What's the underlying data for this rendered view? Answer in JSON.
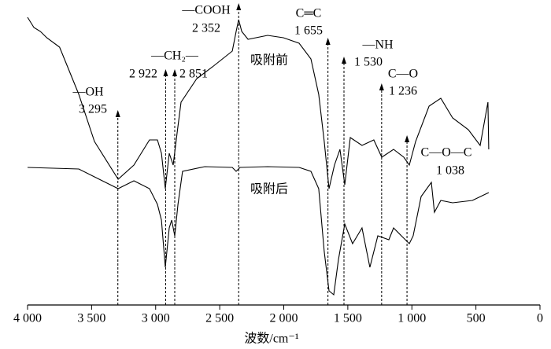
{
  "chart_data": {
    "type": "line",
    "xlabel": "波数/cm⁻¹",
    "xlim": [
      4000,
      0
    ],
    "ylim": [
      0,
      400
    ],
    "xticks": [
      {
        "value": 4000,
        "label": "4 000"
      },
      {
        "value": 3500,
        "label": "3 500"
      },
      {
        "value": 3000,
        "label": "3 000"
      },
      {
        "value": 2500,
        "label": "2 500"
      },
      {
        "value": 2000,
        "label": "2 000"
      },
      {
        "value": 1500,
        "label": "1 500"
      },
      {
        "value": 1000,
        "label": "1 000"
      },
      500,
      0
    ],
    "series": [
      {
        "name": "吸附前",
        "color": "#000000",
        "x": [
          4000,
          3950,
          3900,
          3850,
          3750,
          3600,
          3478,
          3293,
          3170,
          3048,
          2986,
          2955,
          2925,
          2894,
          2863,
          2833,
          2802,
          2679,
          2556,
          2402,
          2372,
          2352,
          2328,
          2279,
          2126,
          2003,
          1880,
          1788,
          1727,
          1684,
          1647,
          1604,
          1561,
          1524,
          1481,
          1389,
          1297,
          1235,
          1143,
          1063,
          1020,
          971,
          866,
          774,
          682,
          559,
          467,
          406,
          400
        ],
        "values": [
          366,
          353,
          348,
          340,
          328,
          268,
          208,
          160,
          178,
          210,
          210,
          193,
          148,
          193,
          178,
          218,
          258,
          288,
          303,
          323,
          348,
          363,
          348,
          338,
          343,
          340,
          333,
          313,
          268,
          208,
          148,
          178,
          198,
          153,
          213,
          203,
          210,
          188,
          198,
          188,
          178,
          208,
          253,
          263,
          238,
          223,
          203,
          258,
          198
        ]
      },
      {
        "name": "吸附后",
        "color": "#000000",
        "x": [
          4000,
          3600,
          3416,
          3293,
          3170,
          3048,
          2986,
          2955,
          2925,
          2894,
          2875,
          2851,
          2826,
          2790,
          2617,
          2402,
          2372,
          2341,
          2126,
          1880,
          1788,
          1727,
          1684,
          1647,
          1610,
          1573,
          1524,
          1463,
          1389,
          1328,
          1266,
          1180,
          1143,
          1082,
          1020,
          990,
          928,
          848,
          824,
          774,
          682,
          528,
          400
        ],
        "values": [
          175,
          173,
          158,
          148,
          158,
          148,
          128,
          108,
          48,
          98,
          108,
          88,
          128,
          170,
          176,
          175,
          170,
          175,
          176,
          175,
          170,
          148,
          68,
          18,
          13,
          58,
          103,
          78,
          98,
          48,
          88,
          83,
          98,
          88,
          78,
          88,
          138,
          156,
          118,
          133,
          130,
          133,
          143
        ]
      }
    ],
    "peaks": [
      {
        "label": "—OH",
        "wavenumbers": [
          {
            "value": 3295,
            "label": "3 295"
          }
        ]
      },
      {
        "label": "—CH₂—",
        "wavenumbers": [
          {
            "value": 2922,
            "label": "2 922"
          },
          {
            "value": 2851,
            "label": "2 851"
          }
        ]
      },
      {
        "label": "—COOH",
        "wavenumbers": [
          {
            "value": 2352,
            "label": "2 352"
          }
        ]
      },
      {
        "label": "C═C",
        "wavenumbers": [
          {
            "value": 1655,
            "label": "1 655"
          }
        ]
      },
      {
        "label": "—NH",
        "wavenumbers": [
          {
            "value": 1530,
            "label": "1 530"
          }
        ]
      },
      {
        "label": "C—O",
        "wavenumbers": [
          {
            "value": 1236,
            "label": "1 236"
          }
        ]
      },
      {
        "label": "C—O—C",
        "wavenumbers": [
          {
            "value": 1038,
            "label": "1 038"
          }
        ]
      }
    ]
  }
}
